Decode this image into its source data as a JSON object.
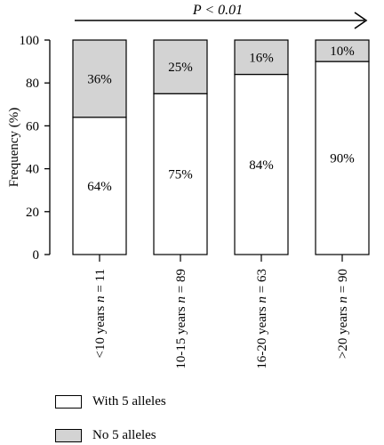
{
  "chart_data": {
    "type": "bar",
    "stacked": true,
    "annotation": "P < 0.01",
    "ylabel": "Frequency (%)",
    "ylim": [
      0,
      100
    ],
    "yticks": [
      0,
      20,
      40,
      60,
      80,
      100
    ],
    "categories": [
      "<10 years n = 11",
      "10-15 years n = 89",
      "16-20 years n = 63",
      ">20 years n = 90"
    ],
    "series": [
      {
        "name": "With 5 alleles",
        "color": "#ffffff",
        "values": [
          64,
          75,
          84,
          90
        ],
        "labels": [
          "64%",
          "75%",
          "84%",
          "90%"
        ]
      },
      {
        "name": "No 5 alleles",
        "color": "#d3d3d3",
        "values": [
          36,
          25,
          16,
          10
        ],
        "labels": [
          "36%",
          "25%",
          "16%",
          "10%"
        ]
      }
    ],
    "legend_position": "bottom-left"
  }
}
